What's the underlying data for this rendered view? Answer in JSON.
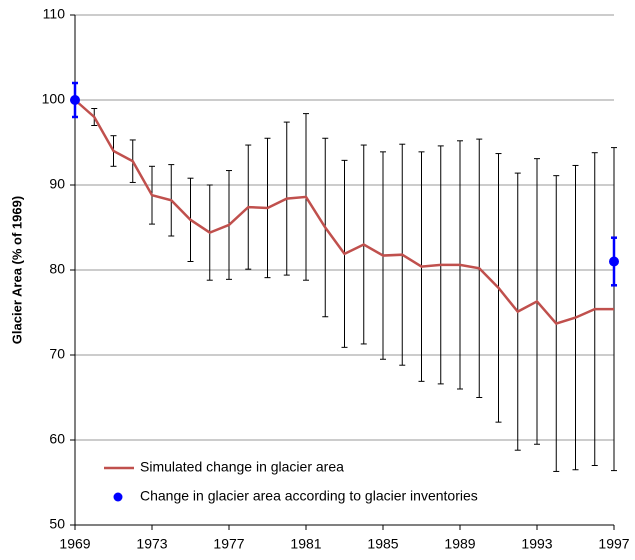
{
  "chart_data": {
    "type": "line",
    "y_label": "Glacier Area (% of 1969)",
    "x": [
      1969,
      1970,
      1971,
      1972,
      1973,
      1974,
      1975,
      1976,
      1977,
      1978,
      1979,
      1980,
      1981,
      1982,
      1983,
      1984,
      1985,
      1986,
      1987,
      1988,
      1989,
      1990,
      1991,
      1992,
      1993,
      1994,
      1995,
      1996,
      1997
    ],
    "xlim": [
      1969,
      1997
    ],
    "xticks": [
      1969,
      1973,
      1977,
      1981,
      1985,
      1989,
      1993,
      1997
    ],
    "ylim": [
      50,
      110
    ],
    "yticks": [
      50,
      60,
      70,
      80,
      90,
      100,
      110
    ],
    "grid": true,
    "legend": "lower left",
    "series": [
      {
        "name": "Simulated change in glacier area",
        "color": "#c0504d",
        "values": [
          100,
          98,
          94,
          92.8,
          88.8,
          88.2,
          85.9,
          84.4,
          85.3,
          87.4,
          87.3,
          88.4,
          88.6,
          85,
          81.9,
          83,
          81.7,
          81.8,
          80.4,
          80.6,
          80.6,
          80.2,
          77.9,
          75.1,
          76.3,
          73.7,
          74.4,
          75.4,
          75.4
        ],
        "errors": [
          0,
          1,
          1.8,
          2.5,
          3.4,
          4.2,
          4.9,
          5.6,
          6.4,
          7.3,
          8.2,
          9,
          9.8,
          10.5,
          11,
          11.7,
          12.2,
          13,
          13.5,
          14,
          14.6,
          15.2,
          15.8,
          16.3,
          16.8,
          17.4,
          17.9,
          18.4,
          19
        ],
        "error_color": "#000000"
      },
      {
        "name": "Change in glacier area according to glacier inventories",
        "color": "#0000ff",
        "marker": true,
        "values": [
          100,
          null,
          null,
          null,
          null,
          null,
          null,
          null,
          null,
          null,
          null,
          null,
          null,
          null,
          null,
          null,
          null,
          null,
          null,
          null,
          null,
          null,
          null,
          null,
          null,
          null,
          null,
          null,
          81
        ],
        "errors": [
          2,
          null,
          null,
          null,
          null,
          null,
          null,
          null,
          null,
          null,
          null,
          null,
          null,
          null,
          null,
          null,
          null,
          null,
          null,
          null,
          null,
          null,
          null,
          null,
          null,
          null,
          null,
          null,
          2.8
        ],
        "error_color": "#0000ff"
      }
    ]
  }
}
